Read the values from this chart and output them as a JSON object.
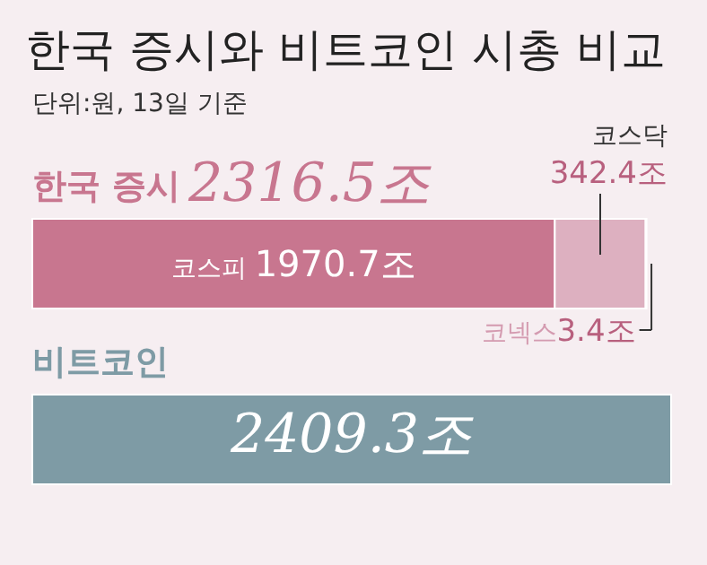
{
  "chart_data": {
    "type": "bar",
    "orientation": "horizontal",
    "stacked": true,
    "title": "한국 증시와 비트코인 시총 비교",
    "subtitle": "단위:원, 13일 기준",
    "categories": [
      "한국 증시",
      "비트코인"
    ],
    "series": [
      {
        "name": "코스피",
        "color": "#c8768f",
        "values": [
          1970.7,
          null
        ],
        "value_labels": [
          "1970.7조",
          null
        ]
      },
      {
        "name": "코스닥",
        "color": "#ddb0c0",
        "values": [
          342.4,
          null
        ],
        "value_labels": [
          "342.4조",
          null
        ]
      },
      {
        "name": "코넥스",
        "color": "#d49bb0",
        "values": [
          3.4,
          null
        ],
        "value_labels": [
          "3.4조",
          null
        ]
      },
      {
        "color": "#7e9ba5",
        "values": [
          null,
          2409.3
        ],
        "value_labels": [
          null,
          "2409.3조"
        ]
      }
    ],
    "totals": [
      "2316.5조",
      null
    ]
  }
}
